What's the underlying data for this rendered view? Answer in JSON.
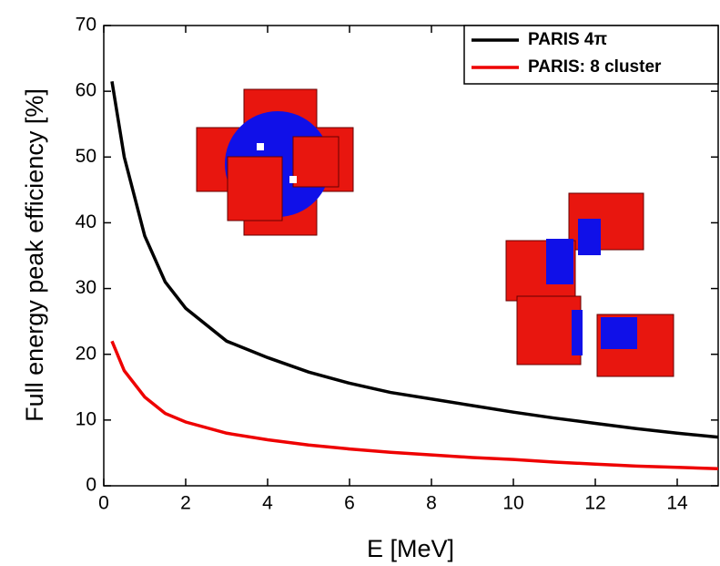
{
  "chart_data": {
    "type": "line",
    "x_label": "E [MeV]",
    "y_label": "Full energy peak efficiency [%]",
    "x": [
      0.2,
      0.5,
      1,
      1.5,
      2,
      3,
      4,
      5,
      6,
      7,
      8,
      9,
      10,
      11,
      12,
      13,
      14,
      15
    ],
    "series": [
      {
        "name": "PARIS 4π",
        "color": "#000000",
        "values": [
          61.5,
          50,
          38,
          31,
          27,
          22,
          19.5,
          17.3,
          15.6,
          14.2,
          13.2,
          12.2,
          11.2,
          10.3,
          9.5,
          8.7,
          8,
          7.4
        ]
      },
      {
        "name": "PARIS: 8 cluster",
        "color": "#ee0000",
        "values": [
          22,
          17.5,
          13.5,
          11,
          9.7,
          8,
          7,
          6.2,
          5.6,
          5.1,
          4.7,
          4.3,
          4,
          3.6,
          3.3,
          3,
          2.8,
          2.6
        ]
      }
    ],
    "xlim": [
      0,
      15
    ],
    "xticks": [
      0,
      2,
      4,
      6,
      8,
      10,
      12,
      14
    ],
    "ylim": [
      0,
      70
    ],
    "yticks": [
      0,
      10,
      20,
      30,
      40,
      50,
      60,
      70
    ],
    "legend": "top-right"
  }
}
